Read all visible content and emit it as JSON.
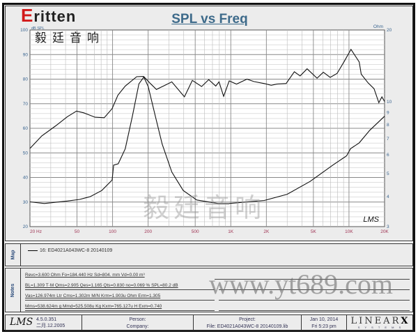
{
  "title": "SPL vs Freq",
  "watermark": {
    "logo": "ritten",
    "logo_initial": "E",
    "logo_cn": "毅廷音响",
    "overlay_cn": "毅廷音响",
    "url": "www.yt689.com"
  },
  "chart_data": {
    "type": "line",
    "title": "SPL vs Freq",
    "xscale": "log",
    "xlim": [
      20,
      20000
    ],
    "ylim": [
      20,
      100
    ],
    "ylabel": "dB SPL",
    "y2label": "Ohm",
    "y2lim": [
      3,
      20
    ],
    "y2scale": "log",
    "grid": true,
    "x_ticks": [
      {
        "v": 20,
        "l": "20  Hz"
      },
      {
        "v": 50,
        "l": "50"
      },
      {
        "v": 100,
        "l": "100"
      },
      {
        "v": 200,
        "l": "200"
      },
      {
        "v": 500,
        "l": "500"
      },
      {
        "v": 1000,
        "l": "1K"
      },
      {
        "v": 2000,
        "l": "2K"
      },
      {
        "v": 5000,
        "l": "5K"
      },
      {
        "v": 10000,
        "l": "10K"
      },
      {
        "v": 20000,
        "l": "20K"
      }
    ],
    "y_ticks": [
      100,
      90,
      80,
      70,
      60,
      50,
      40,
      30,
      20
    ],
    "y2_ticks": [
      20,
      10,
      9,
      8,
      7,
      6,
      5,
      4,
      3
    ],
    "series": [
      {
        "axis": "left",
        "x": [
          20,
          25.2,
          33,
          41.4,
          49.5,
          57,
          71,
          85,
          99,
          111,
          128,
          160,
          183,
          210,
          235,
          274,
          317,
          405,
          473,
          567,
          651,
          746,
          795,
          870,
          970,
          1118,
          1370,
          1573,
          1919,
          2198,
          2455,
          2940,
          3450,
          3860,
          4420,
          5370,
          6070,
          6930,
          7930,
          9070,
          10400,
          12200,
          12700,
          14500,
          16300,
          17900,
          19000,
          20000
        ],
        "y": [
          51.8,
          56.9,
          61,
          64.7,
          67,
          66.3,
          64.5,
          64.3,
          68,
          73.5,
          77.2,
          81,
          81.1,
          78.1,
          75.8,
          77.4,
          78.9,
          72.8,
          79.5,
          77,
          79.8,
          77.2,
          78.9,
          73,
          79.3,
          78,
          80,
          79,
          78.2,
          77.5,
          78,
          78.2,
          83,
          81.3,
          84.2,
          80.4,
          82.8,
          80.7,
          82.3,
          87,
          92.1,
          87,
          82,
          78.5,
          76.1,
          70.4,
          72.8,
          70.9
        ]
      },
      {
        "axis": "right",
        "x": [
          20,
          26.5,
          41.4,
          52.6,
          65,
          81,
          99,
          102,
          111.6,
          128,
          147,
          167,
          184,
          200,
          230,
          263,
          317,
          396,
          515,
          780,
          970,
          1919,
          3000,
          4690,
          7300,
          9540,
          10300,
          12200,
          15000,
          20000
        ],
        "y": [
          3.81,
          3.75,
          3.84,
          3.9,
          4.01,
          4.25,
          4.7,
          5.43,
          5.5,
          6.36,
          8.7,
          11.9,
          12.7,
          11.6,
          8.7,
          6.65,
          5.08,
          4.25,
          3.88,
          3.75,
          3.75,
          3.86,
          4.1,
          4.64,
          5.43,
          5.94,
          6.36,
          6.73,
          7.6,
          8.7
        ]
      }
    ],
    "annotation": "LMS"
  },
  "map": {
    "label": "Map",
    "legend": "16: ED4021A043WC-8   20140109"
  },
  "notes": {
    "label": "Notes",
    "lines": [
      "Revc=3.600 Ohm  Fo=184.440 Hz  Sd=804.   mm  Vd=0.00 m³",
      "BL=1.309 T·M  Qms=2.905  Qes=1.165  Qts=0.830  no=0.069 %  SPL=80.2 dB",
      "Vas=126.974m Ltr  Cms=1.302m M/N  Krm=1.903u Ohm  Erm=1.305",
      "Mms=538.624m g  Mmd=525.508u Kg  Kxm=765.127u H  Exm=0.740"
    ]
  },
  "footer": {
    "logo": "LMS",
    "version": "4.5.0.351",
    "version_date": "二月.12.2005",
    "person": "Person:",
    "company": "Company:",
    "project": "Project:",
    "file": "File: ED4021A043WC-8  20140109.lib",
    "date": "Jan 10, 2014",
    "time": "Fri  5:23 pm",
    "brand": "LINEAR",
    "brand_x": "X",
    "brand_sub": "S Y S T E M S"
  }
}
